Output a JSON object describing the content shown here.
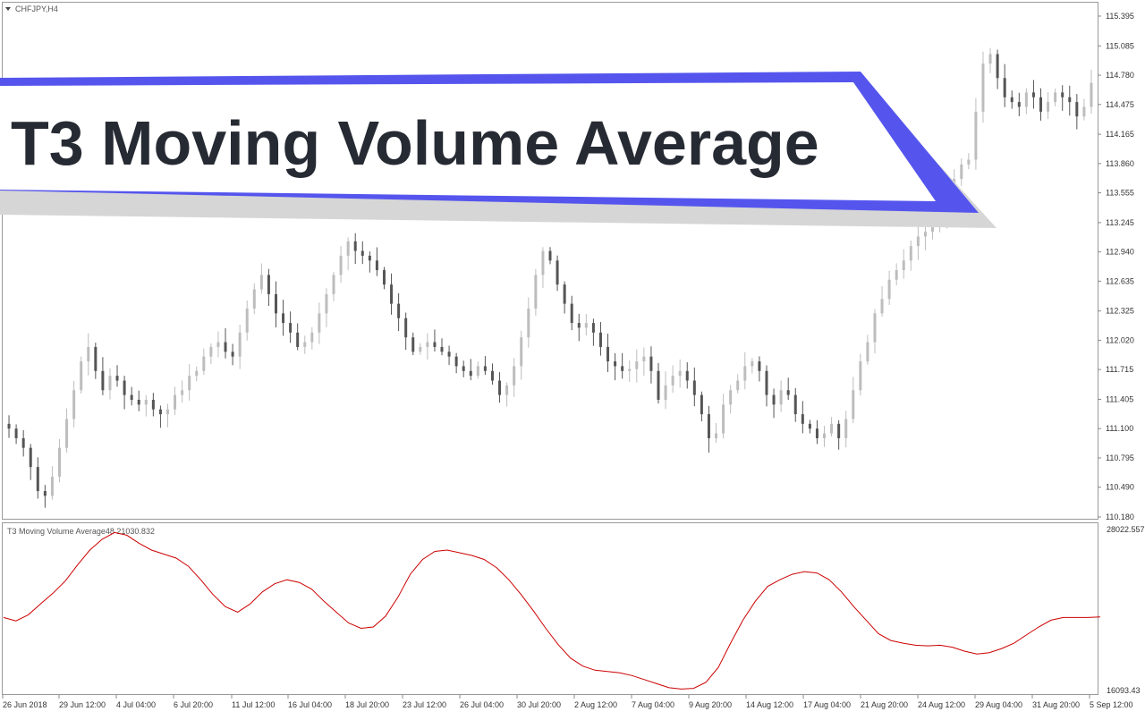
{
  "window": {
    "symbol_label": "CHFJPY,H4",
    "colors": {
      "bull": "#bdbdbd",
      "bear": "#555555",
      "indicator_line": "#cc0000",
      "banner_accent": "#5555ee",
      "banner_text": "#262a33"
    }
  },
  "banner": {
    "title": "T3 Moving Volume Average"
  },
  "indicator": {
    "label": "T3 Moving Volume Average48 21030.832",
    "scale_top": "28022.557",
    "scale_bottom": "16093.43"
  },
  "chart_data": [
    {
      "type": "candlestick",
      "title": "CHFJPY,H4",
      "price_ticks": [
        "115.395",
        "115.085",
        "114.780",
        "114.475",
        "114.165",
        "113.860",
        "113.555",
        "113.245",
        "112.940",
        "112.635",
        "112.325",
        "112.020",
        "111.715",
        "111.405",
        "111.100",
        "110.795",
        "110.490",
        "110.180"
      ],
      "ylim": [
        110.18,
        115.5
      ],
      "x_labels": [
        "26 Jun 2018",
        "29 Jun 12:00",
        "4 Jul 04:00",
        "6 Jul 20:00",
        "11 Jul 12:00",
        "16 Jul 04:00",
        "18 Jul 20:00",
        "23 Jul 12:00",
        "26 Jul 04:00",
        "30 Jul 20:00",
        "2 Aug 12:00",
        "7 Aug 04:00",
        "9 Aug 20:00",
        "14 Aug 12:00",
        "17 Aug 04:00",
        "21 Aug 20:00",
        "24 Aug 12:00",
        "29 Aug 04:00",
        "31 Aug 20:00",
        "5 Sep 12:00"
      ],
      "close_path": [
        111.1,
        111.0,
        110.9,
        110.7,
        110.45,
        110.4,
        110.6,
        110.9,
        111.2,
        111.5,
        111.8,
        111.95,
        111.7,
        111.5,
        111.65,
        111.6,
        111.45,
        111.4,
        111.35,
        111.4,
        111.3,
        111.25,
        111.3,
        111.45,
        111.5,
        111.65,
        111.7,
        111.85,
        111.95,
        112.0,
        111.9,
        111.85,
        112.1,
        112.35,
        112.55,
        112.7,
        112.5,
        112.3,
        112.2,
        112.1,
        111.95,
        112.0,
        112.1,
        112.3,
        112.5,
        112.7,
        112.9,
        113.05,
        112.95,
        112.9,
        112.85,
        112.75,
        112.6,
        112.4,
        112.25,
        112.05,
        111.9,
        111.95,
        112.0,
        111.95,
        111.9,
        111.85,
        111.75,
        111.7,
        111.65,
        111.75,
        111.7,
        111.6,
        111.45,
        111.55,
        111.75,
        112.05,
        112.35,
        112.7,
        112.95,
        112.85,
        112.6,
        112.4,
        112.2,
        112.15,
        112.2,
        112.1,
        111.95,
        111.8,
        111.75,
        111.7,
        111.72,
        111.8,
        111.85,
        111.7,
        111.4,
        111.55,
        111.65,
        111.7,
        111.6,
        111.45,
        111.25,
        111.0,
        111.05,
        111.35,
        111.5,
        111.6,
        111.75,
        111.8,
        111.7,
        111.45,
        111.35,
        111.5,
        111.45,
        111.25,
        111.15,
        111.1,
        111.0,
        111.05,
        111.15,
        111.0,
        111.2,
        111.5,
        111.8,
        112.0,
        112.3,
        112.45,
        112.65,
        112.75,
        112.85,
        113.0,
        113.1,
        113.15,
        113.2,
        113.3,
        113.5,
        113.7,
        113.85,
        113.9,
        114.4,
        114.9,
        115.0,
        114.75,
        114.55,
        114.5,
        114.45,
        114.6,
        114.55,
        114.4,
        114.5,
        114.6,
        114.55,
        114.5,
        114.35,
        114.45,
        114.7
      ]
    },
    {
      "type": "line",
      "title": "T3 Moving Volume Average48 21030.832",
      "ylim": [
        16093.43,
        28022.557
      ],
      "values": [
        21500,
        21250,
        21700,
        22500,
        23300,
        24200,
        25400,
        26500,
        27300,
        27800,
        27600,
        27000,
        26500,
        26200,
        25900,
        25300,
        24300,
        23200,
        22300,
        21900,
        22500,
        23400,
        24000,
        24300,
        24100,
        23600,
        22700,
        21900,
        21100,
        20700,
        20800,
        21600,
        23000,
        24700,
        25800,
        26400,
        26500,
        26300,
        26100,
        25800,
        25200,
        24300,
        23200,
        22000,
        20700,
        19500,
        18500,
        17900,
        17600,
        17500,
        17400,
        17200,
        16900,
        16600,
        16300,
        16200,
        16250,
        16700,
        17800,
        19600,
        21300,
        22700,
        23800,
        24300,
        24700,
        24900,
        24800,
        24300,
        23400,
        22300,
        21300,
        20300,
        19800,
        19600,
        19450,
        19400,
        19450,
        19300,
        19000,
        18800,
        18900,
        19200,
        19600,
        20200,
        20800,
        21300,
        21500,
        21500,
        21500,
        21550
      ]
    }
  ]
}
